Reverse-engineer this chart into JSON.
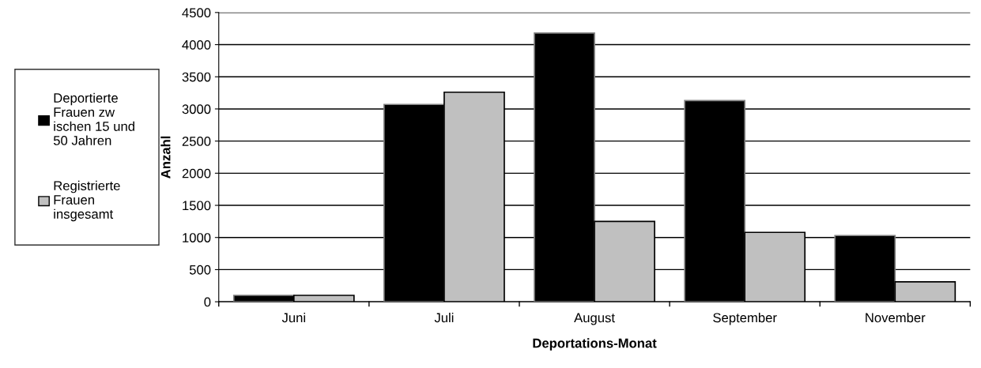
{
  "chart_data": {
    "type": "bar",
    "xlabel": "Deportations-Monat",
    "ylabel": "Anzahl",
    "categories": [
      "Juni",
      "Juli",
      "August",
      "September",
      "November"
    ],
    "series": [
      {
        "name": "Deportierte Frauen zw ischen 15 und 50 Jahren",
        "color": "#000000",
        "values": [
          100,
          3070,
          4180,
          3130,
          1030
        ]
      },
      {
        "name": "Registrierte Frauen insgesamt",
        "color": "#c0c0c0",
        "values": [
          100,
          3260,
          1250,
          1080,
          310
        ]
      }
    ],
    "ylim": [
      0,
      4500
    ],
    "yticks": [
      0,
      500,
      1000,
      1500,
      2000,
      2500,
      3000,
      3500,
      4000,
      4500
    ],
    "grid": "y",
    "legend": "left"
  }
}
